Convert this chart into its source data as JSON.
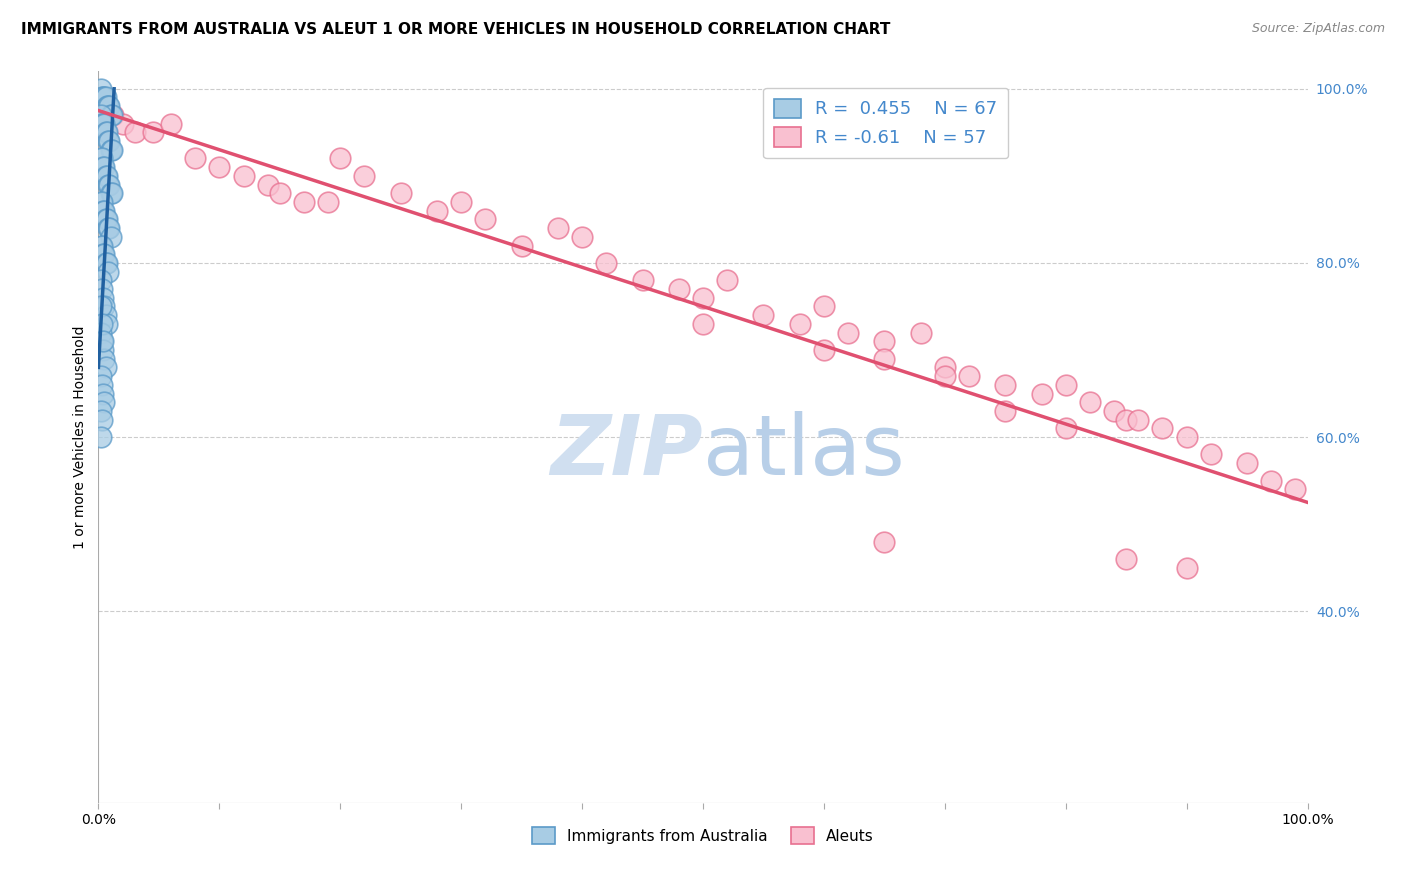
{
  "title": "IMMIGRANTS FROM AUSTRALIA VS ALEUT 1 OR MORE VEHICLES IN HOUSEHOLD CORRELATION CHART",
  "source": "Source: ZipAtlas.com",
  "ylabel": "1 or more Vehicles in Household",
  "legend_label1": "Immigrants from Australia",
  "legend_label2": "Aleuts",
  "R1": 0.455,
  "N1": 67,
  "R2": -0.61,
  "N2": 57,
  "blue_color": "#a8cce4",
  "blue_edge_color": "#5b9ac8",
  "pink_color": "#f9c0d0",
  "pink_edge_color": "#e87090",
  "blue_line_color": "#2060a0",
  "pink_line_color": "#e05070",
  "watermark_color": "#d0dff0",
  "right_axis_color": "#4488cc",
  "xlim": [
    0.0,
    1.0
  ],
  "ylim": [
    0.18,
    1.02
  ],
  "right_yticks": [
    0.4,
    0.6,
    0.8,
    1.0
  ],
  "right_yticklabels": [
    "40.0%",
    "60.0%",
    "80.0%",
    "100.0%"
  ],
  "xtick_positions": [
    0.0,
    0.1,
    0.2,
    0.3,
    0.4,
    0.5,
    0.6,
    0.7,
    0.8,
    0.9,
    1.0
  ],
  "xtick_labels": [
    "0.0%",
    "",
    "",
    "",
    "",
    "",
    "",
    "",
    "",
    "",
    "100.0%"
  ],
  "grid_yticks": [
    0.4,
    0.6,
    0.8,
    1.0
  ],
  "blue_scatter_x": [
    0.002,
    0.003,
    0.004,
    0.005,
    0.006,
    0.007,
    0.008,
    0.009,
    0.01,
    0.011,
    0.002,
    0.003,
    0.004,
    0.005,
    0.006,
    0.007,
    0.008,
    0.009,
    0.01,
    0.011,
    0.002,
    0.003,
    0.004,
    0.005,
    0.006,
    0.007,
    0.008,
    0.009,
    0.01,
    0.011,
    0.002,
    0.003,
    0.004,
    0.005,
    0.006,
    0.007,
    0.008,
    0.009,
    0.01,
    0.002,
    0.003,
    0.004,
    0.005,
    0.006,
    0.007,
    0.008,
    0.002,
    0.003,
    0.004,
    0.005,
    0.006,
    0.007,
    0.002,
    0.003,
    0.004,
    0.005,
    0.006,
    0.002,
    0.003,
    0.004,
    0.005,
    0.002,
    0.003,
    0.004,
    0.002,
    0.003,
    0.002
  ],
  "blue_scatter_y": [
    1.0,
    0.99,
    0.99,
    0.99,
    0.99,
    0.98,
    0.98,
    0.98,
    0.97,
    0.97,
    0.97,
    0.96,
    0.96,
    0.96,
    0.95,
    0.95,
    0.94,
    0.94,
    0.93,
    0.93,
    0.92,
    0.92,
    0.91,
    0.91,
    0.9,
    0.9,
    0.89,
    0.89,
    0.88,
    0.88,
    0.87,
    0.87,
    0.86,
    0.86,
    0.85,
    0.85,
    0.84,
    0.84,
    0.83,
    0.82,
    0.82,
    0.81,
    0.81,
    0.8,
    0.8,
    0.79,
    0.78,
    0.77,
    0.76,
    0.75,
    0.74,
    0.73,
    0.72,
    0.71,
    0.7,
    0.69,
    0.68,
    0.67,
    0.66,
    0.65,
    0.64,
    0.75,
    0.73,
    0.71,
    0.63,
    0.62,
    0.6
  ],
  "pink_scatter_x": [
    0.005,
    0.012,
    0.02,
    0.03,
    0.045,
    0.06,
    0.08,
    0.1,
    0.12,
    0.14,
    0.15,
    0.17,
    0.19,
    0.2,
    0.22,
    0.25,
    0.28,
    0.3,
    0.32,
    0.35,
    0.38,
    0.4,
    0.42,
    0.45,
    0.48,
    0.5,
    0.52,
    0.55,
    0.58,
    0.6,
    0.62,
    0.65,
    0.68,
    0.7,
    0.72,
    0.75,
    0.78,
    0.8,
    0.82,
    0.84,
    0.85,
    0.86,
    0.88,
    0.9,
    0.92,
    0.95,
    0.97,
    0.99,
    0.5,
    0.6,
    0.65,
    0.7,
    0.75,
    0.8,
    0.85,
    0.9,
    0.65
  ],
  "pink_scatter_y": [
    0.975,
    0.97,
    0.96,
    0.95,
    0.95,
    0.96,
    0.92,
    0.91,
    0.9,
    0.89,
    0.88,
    0.87,
    0.87,
    0.92,
    0.9,
    0.88,
    0.86,
    0.87,
    0.85,
    0.82,
    0.84,
    0.83,
    0.8,
    0.78,
    0.77,
    0.76,
    0.78,
    0.74,
    0.73,
    0.75,
    0.72,
    0.71,
    0.72,
    0.68,
    0.67,
    0.66,
    0.65,
    0.66,
    0.64,
    0.63,
    0.62,
    0.62,
    0.61,
    0.6,
    0.58,
    0.57,
    0.55,
    0.54,
    0.73,
    0.7,
    0.69,
    0.67,
    0.63,
    0.61,
    0.46,
    0.45,
    0.48
  ],
  "pink_line_x0": 0.0,
  "pink_line_x1": 1.0,
  "pink_line_y0": 0.975,
  "pink_line_y1": 0.525,
  "blue_line_x0": 0.0,
  "blue_line_x1": 0.013,
  "blue_line_y0": 0.68,
  "blue_line_y1": 1.0
}
